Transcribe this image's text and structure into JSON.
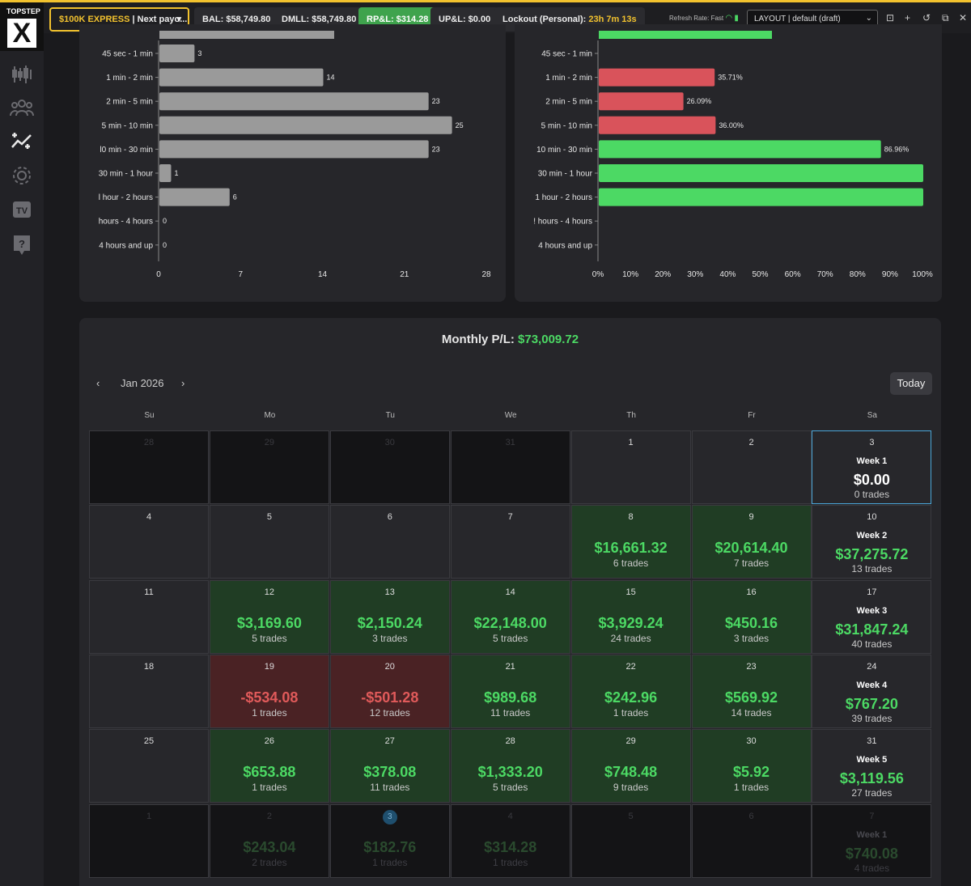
{
  "brand": {
    "top": "TOPSTEP",
    "mark": "X"
  },
  "header": {
    "account_prefix": "$100K EXPRESS",
    "account_suffix": " | Next payo...",
    "bal": "BAL: $58,749.80",
    "dmll": "DMLL: $58,749.80",
    "rpl": "RP&L: $314.28",
    "upl": "UP&L: $0.00",
    "lockout_label": "Lockout (Personal): ",
    "lockout_value": "23h 7m 13s",
    "refresh": "Refresh Rate: Fast",
    "layout": "LAYOUT | default (draft)"
  },
  "colors": {
    "accent": "#f2c22e",
    "positive": "#4cd964",
    "negative": "#e05a5a",
    "bar_gray": "#9a9a9a"
  },
  "chart_data": [
    {
      "type": "bar",
      "orientation": "horizontal",
      "categories": [
        "45 sec - 1 min",
        "1 min - 2 min",
        "2 min - 5 min",
        "5 min - 10 min",
        "l0 min - 30 min",
        "30 min - 1 hour",
        "l hour - 2 hours",
        "hours - 4 hours",
        "4 hours and up"
      ],
      "values": [
        3,
        14,
        23,
        25,
        23,
        1,
        6,
        0,
        0
      ],
      "xticks": [
        "0",
        "7",
        "14",
        "21",
        "28"
      ],
      "xlim": [
        0,
        28
      ],
      "color": "#9a9a9a"
    },
    {
      "type": "bar",
      "orientation": "horizontal",
      "categories": [
        "45 sec - 1 min",
        "1 min - 2 min",
        "2 min - 5 min",
        "5 min - 10 min",
        "10 min - 30 min",
        "30 min - 1 hour",
        "1 hour - 2 hours",
        "! hours - 4 hours",
        "4 hours and up"
      ],
      "values": [
        null,
        35.71,
        26.09,
        36.0,
        86.96,
        100,
        100,
        null,
        null
      ],
      "labels": [
        "",
        "35.71%",
        "26.09%",
        "36.00%",
        "86.96%",
        "",
        "",
        "",
        ""
      ],
      "colors": [
        "",
        "#d9535b",
        "#d9535b",
        "#d9535b",
        "#4cd964",
        "#4cd964",
        "#4cd964",
        "",
        ""
      ],
      "xticks": [
        "0%",
        "10%",
        "20%",
        "30%",
        "40%",
        "50%",
        "60%",
        "70%",
        "80%",
        "90%",
        "100%"
      ],
      "xlim": [
        0,
        100
      ]
    }
  ],
  "calendar": {
    "title_label": "Monthly P/L: ",
    "title_value": "$73,009.72",
    "month": "Jan 2026",
    "today": "Today",
    "prev": "‹",
    "next": "›",
    "dow": [
      "Su",
      "Mo",
      "Tu",
      "We",
      "Th",
      "Fr",
      "Sa"
    ],
    "weeks": [
      [
        {
          "d": "28",
          "o": 1
        },
        {
          "d": "29",
          "o": 1
        },
        {
          "d": "30",
          "o": 1
        },
        {
          "d": "31",
          "o": 1
        },
        {
          "d": "1"
        },
        {
          "d": "2"
        },
        {
          "d": "3",
          "wk": "Week 1",
          "amt": "$0.00",
          "tr": "0 trades",
          "zero": 1,
          "sel": 1
        }
      ],
      [
        {
          "d": "4"
        },
        {
          "d": "5"
        },
        {
          "d": "6"
        },
        {
          "d": "7"
        },
        {
          "d": "8",
          "amt": "$16,661.32",
          "tr": "6 trades",
          "p": 1
        },
        {
          "d": "9",
          "amt": "$20,614.40",
          "tr": "7 trades",
          "p": 1
        },
        {
          "d": "10",
          "wk": "Week 2",
          "amt": "$37,275.72",
          "tr": "13 trades"
        }
      ],
      [
        {
          "d": "11"
        },
        {
          "d": "12",
          "amt": "$3,169.60",
          "tr": "5 trades",
          "p": 1
        },
        {
          "d": "13",
          "amt": "$2,150.24",
          "tr": "3 trades",
          "p": 1
        },
        {
          "d": "14",
          "amt": "$22,148.00",
          "tr": "5 trades",
          "p": 1
        },
        {
          "d": "15",
          "amt": "$3,929.24",
          "tr": "24 trades",
          "p": 1
        },
        {
          "d": "16",
          "amt": "$450.16",
          "tr": "3 trades",
          "p": 1
        },
        {
          "d": "17",
          "wk": "Week 3",
          "amt": "$31,847.24",
          "tr": "40 trades"
        }
      ],
      [
        {
          "d": "18"
        },
        {
          "d": "19",
          "amt": "-$534.08",
          "tr": "1 trades",
          "n": 1
        },
        {
          "d": "20",
          "amt": "-$501.28",
          "tr": "12 trades",
          "n": 1
        },
        {
          "d": "21",
          "amt": "$989.68",
          "tr": "11 trades",
          "p": 1
        },
        {
          "d": "22",
          "amt": "$242.96",
          "tr": "1 trades",
          "p": 1
        },
        {
          "d": "23",
          "amt": "$569.92",
          "tr": "14 trades",
          "p": 1
        },
        {
          "d": "24",
          "wk": "Week 4",
          "amt": "$767.20",
          "tr": "39 trades"
        }
      ],
      [
        {
          "d": "25"
        },
        {
          "d": "26",
          "amt": "$653.88",
          "tr": "1 trades",
          "p": 1
        },
        {
          "d": "27",
          "amt": "$378.08",
          "tr": "11 trades",
          "p": 1
        },
        {
          "d": "28",
          "amt": "$1,333.20",
          "tr": "5 trades",
          "p": 1
        },
        {
          "d": "29",
          "amt": "$748.48",
          "tr": "9 trades",
          "p": 1
        },
        {
          "d": "30",
          "amt": "$5.92",
          "tr": "1 trades",
          "p": 1
        },
        {
          "d": "31",
          "wk": "Week 5",
          "amt": "$3,119.56",
          "tr": "27 trades"
        }
      ],
      [
        {
          "d": "1",
          "o": 1
        },
        {
          "d": "2",
          "o": 1,
          "amt": "$243.04",
          "tr": "2 trades"
        },
        {
          "d": "3",
          "o": 1,
          "amt": "$182.76",
          "tr": "1 trades",
          "badge": 1
        },
        {
          "d": "4",
          "o": 1,
          "amt": "$314.28",
          "tr": "1 trades"
        },
        {
          "d": "5",
          "o": 1
        },
        {
          "d": "6",
          "o": 1
        },
        {
          "d": "7",
          "o": 1,
          "wk": "Week 1",
          "amt": "$740.08",
          "tr": "4 trades"
        }
      ]
    ]
  }
}
